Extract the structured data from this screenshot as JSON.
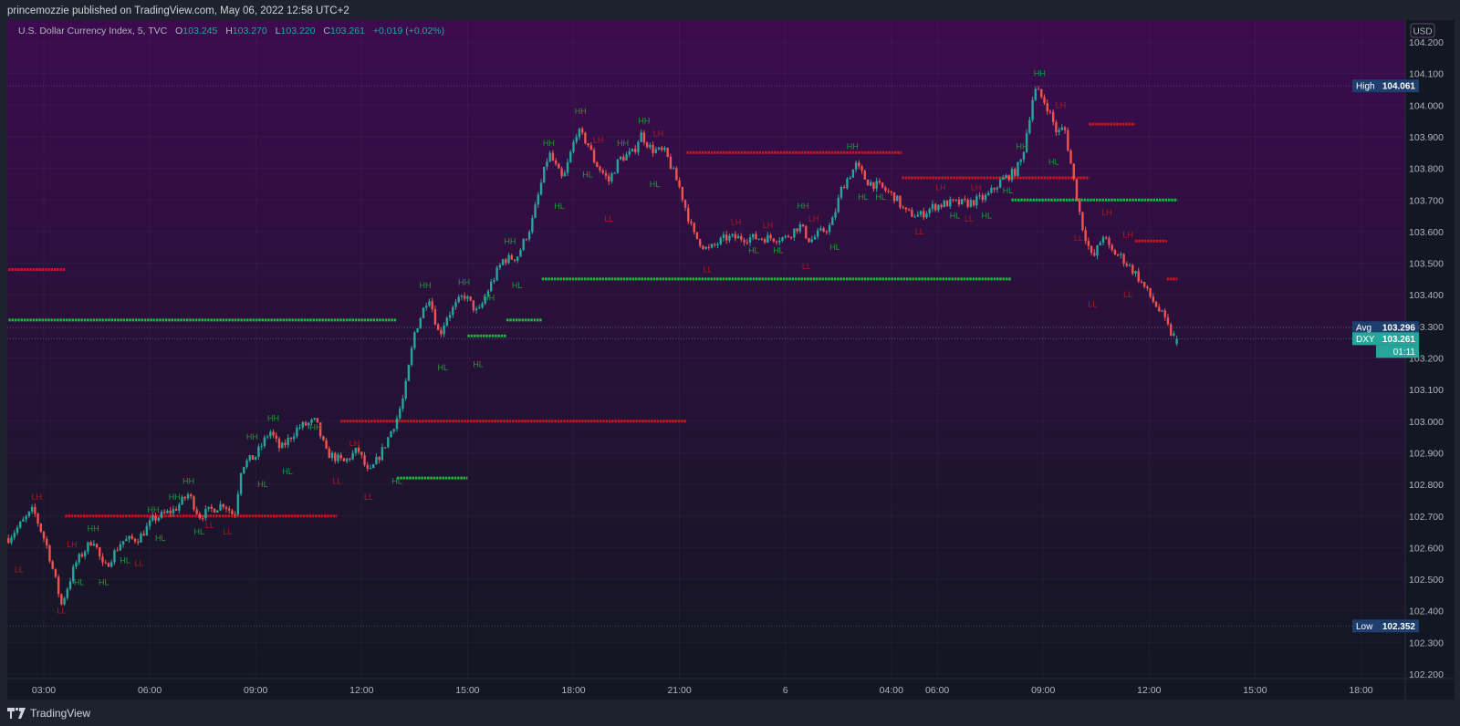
{
  "header": {
    "published": "princemozzie published on TradingView.com, May 06, 2022 12:58 UTC+2"
  },
  "legend": {
    "symbol": "U.S. Dollar Currency Index, 5, TVC",
    "o_label": "O",
    "o": "103.245",
    "h_label": "H",
    "h": "103.270",
    "l_label": "L",
    "l": "103.220",
    "c_label": "C",
    "c": "103.261",
    "change": "+0.019 (+0.02%)"
  },
  "footer": {
    "brand": "TradingView"
  },
  "colors": {
    "up": "#26a69a",
    "down": "#ef5350",
    "support": "#1db83a",
    "resistance": "#c8171f",
    "pivot_high_label": "#1f9a3c",
    "pivot_low_label": "#b3161c",
    "bg_top": "#3c0b4e",
    "bg_bottom": "#131722"
  },
  "chart_data": {
    "type": "candlestick",
    "symbol": "DXY",
    "interval": "5",
    "currency": "USD",
    "y_ticks": [
      "104.200",
      "104.100",
      "104.000",
      "103.900",
      "103.800",
      "103.700",
      "103.600",
      "103.500",
      "103.400",
      "103.300",
      "103.200",
      "103.100",
      "103.000",
      "102.900",
      "102.800",
      "102.700",
      "102.600",
      "102.500",
      "102.400",
      "102.300",
      "102.200"
    ],
    "ylim": [
      102.2,
      104.2
    ],
    "x_ticks": [
      "03:00",
      "06:00",
      "09:00",
      "12:00",
      "15:00",
      "18:00",
      "21:00",
      "6",
      "04:00",
      "06:00",
      "09:00",
      "12:00",
      "15:00",
      "18:00"
    ],
    "price_path_hours_price": [
      [
        2.0,
        102.63
      ],
      [
        2.7,
        102.72
      ],
      [
        3.1,
        102.6
      ],
      [
        3.5,
        102.42
      ],
      [
        3.9,
        102.55
      ],
      [
        4.4,
        102.63
      ],
      [
        4.7,
        102.53
      ],
      [
        5.2,
        102.62
      ],
      [
        5.7,
        102.63
      ],
      [
        6.1,
        102.69
      ],
      [
        6.7,
        102.72
      ],
      [
        7.1,
        102.77
      ],
      [
        7.4,
        102.7
      ],
      [
        8.1,
        102.74
      ],
      [
        8.4,
        102.7
      ],
      [
        8.6,
        102.86
      ],
      [
        9.0,
        102.89
      ],
      [
        9.4,
        102.97
      ],
      [
        9.7,
        102.91
      ],
      [
        10.2,
        102.98
      ],
      [
        10.7,
        103.0
      ],
      [
        11.0,
        102.9
      ],
      [
        11.5,
        102.87
      ],
      [
        11.9,
        102.91
      ],
      [
        12.2,
        102.83
      ],
      [
        12.6,
        102.91
      ],
      [
        13.0,
        103.01
      ],
      [
        13.2,
        103.08
      ],
      [
        13.5,
        103.28
      ],
      [
        13.9,
        103.4
      ],
      [
        14.2,
        103.27
      ],
      [
        14.4,
        103.33
      ],
      [
        14.9,
        103.4
      ],
      [
        15.3,
        103.34
      ],
      [
        15.6,
        103.42
      ],
      [
        16.0,
        103.51
      ],
      [
        16.4,
        103.52
      ],
      [
        16.8,
        103.62
      ],
      [
        17.1,
        103.76
      ],
      [
        17.3,
        103.85
      ],
      [
        17.7,
        103.76
      ],
      [
        18.1,
        103.92
      ],
      [
        18.4,
        103.88
      ],
      [
        18.6,
        103.82
      ],
      [
        19.0,
        103.76
      ],
      [
        19.3,
        103.83
      ],
      [
        19.7,
        103.85
      ],
      [
        19.9,
        103.91
      ],
      [
        20.2,
        103.86
      ],
      [
        20.6,
        103.85
      ],
      [
        21.0,
        103.74
      ],
      [
        21.4,
        103.59
      ],
      [
        21.8,
        103.54
      ],
      [
        22.3,
        103.58
      ],
      [
        22.8,
        103.58
      ],
      [
        23.4,
        103.58
      ],
      [
        24.0,
        103.58
      ],
      [
        24.4,
        103.62
      ],
      [
        24.7,
        103.57
      ],
      [
        24.9,
        103.59
      ],
      [
        25.3,
        103.62
      ],
      [
        25.6,
        103.74
      ],
      [
        26.0,
        103.81
      ],
      [
        26.3,
        103.76
      ],
      [
        26.7,
        103.74
      ],
      [
        27.1,
        103.71
      ],
      [
        27.4,
        103.66
      ],
      [
        27.8,
        103.65
      ],
      [
        28.2,
        103.68
      ],
      [
        28.6,
        103.69
      ],
      [
        29.2,
        103.69
      ],
      [
        29.7,
        103.71
      ],
      [
        30.1,
        103.76
      ],
      [
        30.5,
        103.79
      ],
      [
        30.7,
        103.83
      ],
      [
        31.0,
        104.02
      ],
      [
        31.1,
        104.05
      ],
      [
        31.4,
        104.0
      ],
      [
        31.7,
        103.91
      ],
      [
        31.9,
        103.93
      ],
      [
        32.2,
        103.74
      ],
      [
        32.4,
        103.62
      ],
      [
        32.7,
        103.51
      ],
      [
        33.0,
        103.59
      ],
      [
        33.2,
        103.54
      ],
      [
        33.5,
        103.52
      ],
      [
        33.9,
        103.47
      ],
      [
        34.3,
        103.4
      ],
      [
        34.7,
        103.33
      ],
      [
        34.9,
        103.28
      ],
      [
        35.1,
        103.261
      ]
    ],
    "levels": [
      {
        "type": "resistance",
        "price": 103.48,
        "from": 2.0,
        "to": 3.6
      },
      {
        "type": "support",
        "price": 103.32,
        "from": 2.0,
        "to": 13.0
      },
      {
        "type": "resistance",
        "price": 102.7,
        "from": 3.6,
        "to": 11.3
      },
      {
        "type": "resistance",
        "price": 103.0,
        "from": 11.4,
        "to": 21.2
      },
      {
        "type": "support",
        "price": 102.82,
        "from": 13.0,
        "to": 15.0
      },
      {
        "type": "support",
        "price": 103.27,
        "from": 15.0,
        "to": 16.1
      },
      {
        "type": "support",
        "price": 103.32,
        "from": 16.1,
        "to": 17.1
      },
      {
        "type": "support",
        "price": 103.45,
        "from": 17.1,
        "to": 30.4
      },
      {
        "type": "resistance",
        "price": 103.85,
        "from": 21.2,
        "to": 27.3
      },
      {
        "type": "resistance",
        "price": 103.77,
        "from": 27.3,
        "to": 32.6
      },
      {
        "type": "support",
        "price": 103.7,
        "from": 30.4,
        "to": 35.1
      },
      {
        "type": "resistance",
        "price": 103.94,
        "from": 32.6,
        "to": 33.9
      },
      {
        "type": "resistance",
        "price": 103.57,
        "from": 33.9,
        "to": 34.8
      },
      {
        "type": "resistance",
        "price": 103.45,
        "from": 34.8,
        "to": 35.1
      }
    ],
    "pivots": [
      [
        2.3,
        102.53,
        "LL"
      ],
      [
        2.8,
        102.76,
        "LH"
      ],
      [
        3.5,
        102.4,
        "LL"
      ],
      [
        3.8,
        102.61,
        "LH"
      ],
      [
        4.0,
        102.49,
        "HL"
      ],
      [
        4.4,
        102.66,
        "HH"
      ],
      [
        4.7,
        102.49,
        "HL"
      ],
      [
        5.3,
        102.56,
        "HL"
      ],
      [
        5.7,
        102.55,
        "LL"
      ],
      [
        6.1,
        102.72,
        "HH"
      ],
      [
        6.3,
        102.63,
        "HL"
      ],
      [
        6.7,
        102.76,
        "HH"
      ],
      [
        7.1,
        102.81,
        "HH"
      ],
      [
        7.4,
        102.65,
        "HL"
      ],
      [
        7.7,
        102.67,
        "LL"
      ],
      [
        8.2,
        102.65,
        "LL"
      ],
      [
        8.9,
        102.95,
        "HH"
      ],
      [
        9.5,
        103.01,
        "HH"
      ],
      [
        9.2,
        102.8,
        "HL"
      ],
      [
        9.9,
        102.84,
        "HL"
      ],
      [
        10.7,
        102.98,
        "HH"
      ],
      [
        11.3,
        102.81,
        "LL"
      ],
      [
        11.8,
        102.93,
        "LH"
      ],
      [
        12.2,
        102.76,
        "LL"
      ],
      [
        13.0,
        102.81,
        "HL"
      ],
      [
        13.8,
        103.43,
        "HH"
      ],
      [
        14.3,
        103.17,
        "HL"
      ],
      [
        14.9,
        103.44,
        "HH"
      ],
      [
        15.3,
        103.18,
        "HL"
      ],
      [
        15.6,
        103.39,
        "HH"
      ],
      [
        16.2,
        103.57,
        "HH"
      ],
      [
        16.4,
        103.43,
        "HL"
      ],
      [
        17.3,
        103.88,
        "HH"
      ],
      [
        17.6,
        103.68,
        "HL"
      ],
      [
        18.2,
        103.98,
        "HH"
      ],
      [
        18.4,
        103.78,
        "HL"
      ],
      [
        18.7,
        103.89,
        "LH"
      ],
      [
        19.0,
        103.64,
        "LL"
      ],
      [
        19.4,
        103.88,
        "HH"
      ],
      [
        20.0,
        103.95,
        "HH"
      ],
      [
        20.3,
        103.75,
        "HL"
      ],
      [
        20.4,
        103.91,
        "LH"
      ],
      [
        21.8,
        103.48,
        "LL"
      ],
      [
        22.6,
        103.63,
        "LH"
      ],
      [
        23.1,
        103.54,
        "HL"
      ],
      [
        23.5,
        103.62,
        "LH"
      ],
      [
        23.8,
        103.54,
        "HL"
      ],
      [
        24.5,
        103.68,
        "HH"
      ],
      [
        24.6,
        103.49,
        "LL"
      ],
      [
        24.8,
        103.64,
        "LH"
      ],
      [
        25.4,
        103.55,
        "HL"
      ],
      [
        25.9,
        103.87,
        "HH"
      ],
      [
        26.2,
        103.71,
        "HL"
      ],
      [
        26.7,
        103.71,
        "HL"
      ],
      [
        27.8,
        103.6,
        "LL"
      ],
      [
        28.4,
        103.74,
        "LH"
      ],
      [
        28.8,
        103.65,
        "HL"
      ],
      [
        29.2,
        103.64,
        "LL"
      ],
      [
        29.4,
        103.74,
        "LH"
      ],
      [
        29.7,
        103.65,
        "HL"
      ],
      [
        30.3,
        103.73,
        "HL"
      ],
      [
        30.7,
        103.87,
        "HH"
      ],
      [
        31.2,
        104.1,
        "HH"
      ],
      [
        31.6,
        103.82,
        "HL"
      ],
      [
        31.8,
        104.0,
        "LH"
      ],
      [
        32.3,
        103.58,
        "LL"
      ],
      [
        32.7,
        103.37,
        "LL"
      ],
      [
        33.1,
        103.66,
        "LH"
      ],
      [
        33.7,
        103.4,
        "LL"
      ],
      [
        33.7,
        103.59,
        "LH"
      ]
    ],
    "markers": {
      "high": {
        "label": "High",
        "value": "104.061"
      },
      "low": {
        "label": "Low",
        "value": "102.352"
      },
      "avg": {
        "label": "Avg",
        "value": "103.296"
      },
      "last": {
        "label": "DXY",
        "value": "103.261",
        "countdown": "01:11"
      }
    }
  }
}
